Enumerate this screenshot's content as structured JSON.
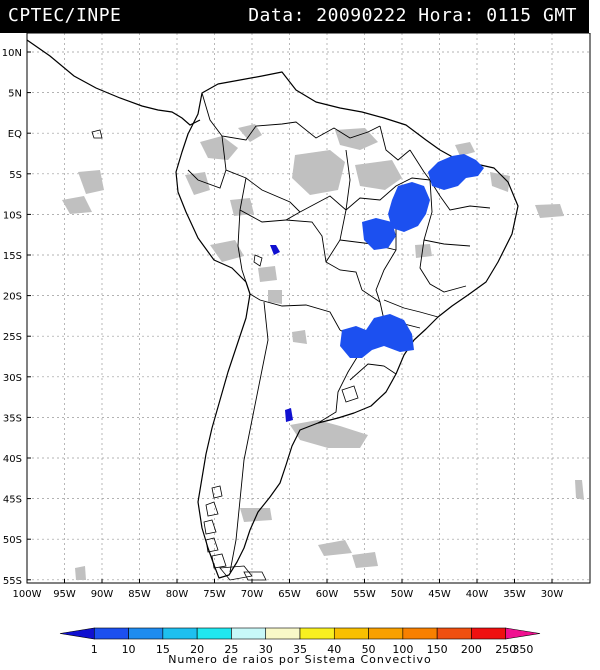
{
  "header": {
    "source": "CPTEC/INPE",
    "datetime": "Data: 20090222 Hora: 0115 GMT"
  },
  "map": {
    "lat_labels": [
      "10N",
      "5N",
      "EQ",
      "5S",
      "10S",
      "15S",
      "20S",
      "25S",
      "30S",
      "35S",
      "40S",
      "45S",
      "50S",
      "55S"
    ],
    "lon_labels": [
      "100W",
      "95W",
      "90W",
      "85W",
      "80W",
      "75W",
      "70W",
      "65W",
      "60W",
      "55W",
      "50W",
      "45W",
      "40W",
      "35W",
      "30W"
    ]
  },
  "legend": {
    "values": [
      "1",
      "10",
      "15",
      "20",
      "25",
      "30",
      "35",
      "40",
      "50",
      "100",
      "150",
      "200",
      "250",
      "350"
    ],
    "colors": [
      "#1010d0",
      "#1c50f0",
      "#1e8cf0",
      "#1ec0f0",
      "#20e8f0",
      "#c8f8f8",
      "#f8f8c8",
      "#f8f020",
      "#f8c000",
      "#f8a000",
      "#f88000",
      "#f05010",
      "#f01010",
      "#f01090"
    ],
    "title": "Numero de raios por Sistema Convectivo"
  },
  "colors": {
    "cloud": "#c0c0c0",
    "convective_system": "#1c50f0",
    "small_system": "#1010d0",
    "background": "#ffffff",
    "header": "#000000"
  }
}
